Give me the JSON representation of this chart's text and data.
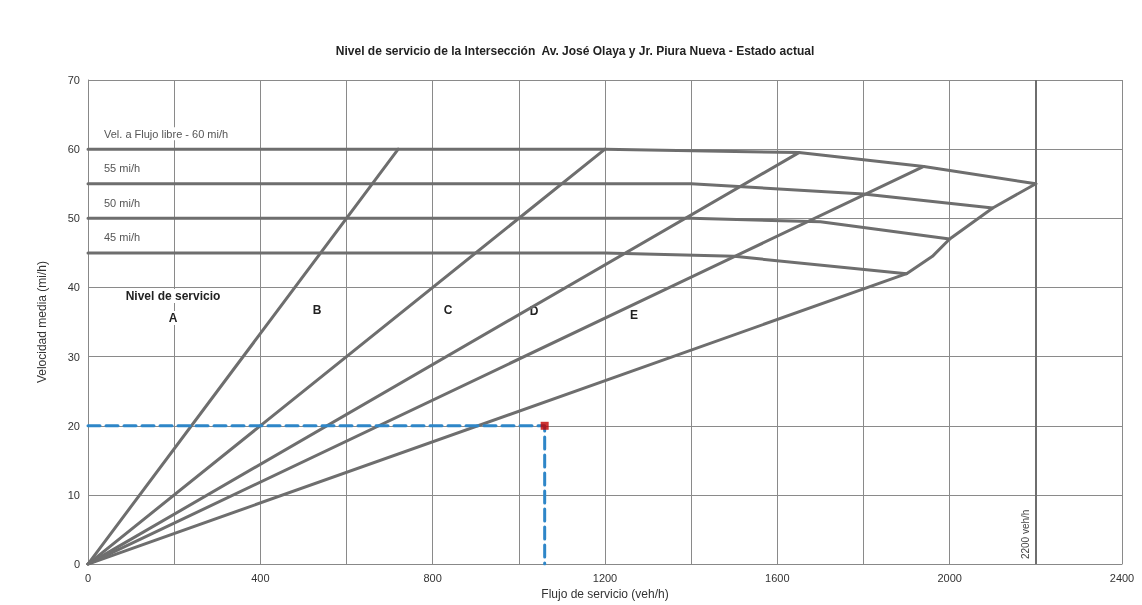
{
  "chart_data": {
    "type": "line",
    "title": "Nivel de servicio de la Intersección  Av. José Olaya y Jr. Piura Nueva - Estado actual",
    "xlabel": "Flujo de servicio (veh/h)",
    "ylabel": "Velocidad media (mi/h)",
    "xlim": [
      0,
      2400
    ],
    "xticks": [
      0,
      {
        "value": 200,
        "label": null
      },
      400,
      {
        "value": 600,
        "label": null
      },
      800,
      {
        "value": 1000,
        "label": null
      },
      1200,
      {
        "value": 1400,
        "label": null
      },
      1600,
      {
        "value": 1800,
        "label": null
      },
      2000,
      {
        "value": 2200,
        "label": null
      },
      2400
    ],
    "ylim": [
      0,
      70
    ],
    "yticks": [
      0,
      10,
      20,
      30,
      40,
      50,
      60,
      70
    ],
    "grid": true,
    "legend": false,
    "marker": "none",
    "line_style": "solid",
    "series": [
      {
        "name": "Vel. a Flujo libre - 60 mi/h",
        "color": "#6e6e6e",
        "x": [
          0,
          1200,
          1650,
          1940,
          2200
        ],
        "values": [
          60,
          60,
          59.5,
          57.5,
          55
        ]
      },
      {
        "name": "55 mi/h",
        "color": "#6e6e6e",
        "x": [
          0,
          1200,
          1400,
          1800,
          2100
        ],
        "values": [
          55,
          55,
          55,
          53.5,
          51.5
        ]
      },
      {
        "name": "50 mi/h",
        "color": "#6e6e6e",
        "x": [
          0,
          1400,
          1700,
          2000
        ],
        "values": [
          50,
          50,
          49.5,
          47
        ]
      },
      {
        "name": "45 mi/h",
        "color": "#6e6e6e",
        "x": [
          0,
          1200,
          1500,
          1900
        ],
        "values": [
          45,
          45,
          44.5,
          42
        ]
      },
      {
        "color": "#6e6e6e",
        "x": [
          0,
          720
        ],
        "values": [
          0,
          60
        ]
      },
      {
        "color": "#6e6e6e",
        "x": [
          0,
          1200
        ],
        "values": [
          0,
          60
        ]
      },
      {
        "color": "#6e6e6e",
        "x": [
          0,
          1650
        ],
        "values": [
          0,
          59.5
        ]
      },
      {
        "color": "#6e6e6e",
        "x": [
          0,
          1940
        ],
        "values": [
          0,
          57.5
        ]
      },
      {
        "color": "#6e6e6e",
        "x": [
          0,
          1900,
          1960,
          2000,
          2100,
          2200
        ],
        "values": [
          0,
          42,
          44.5,
          47,
          51.5,
          55
        ]
      },
      {
        "color": "#2e86c8",
        "line_style": "dashed",
        "x": [
          0,
          1060,
          1060
        ],
        "values": [
          20,
          20,
          0
        ]
      },
      {
        "type": "scatter",
        "marker": "square",
        "color": "#c00000",
        "x": [
          1060
        ],
        "values": [
          20
        ]
      }
    ],
    "ref_lines": [
      {
        "axis": "x",
        "value": 2200,
        "label": "2200 veh/h",
        "color": "#6e6e6e"
      }
    ],
    "annotations": [
      "Nivel de servicio",
      "A",
      "B",
      "C",
      "D",
      "E"
    ]
  }
}
